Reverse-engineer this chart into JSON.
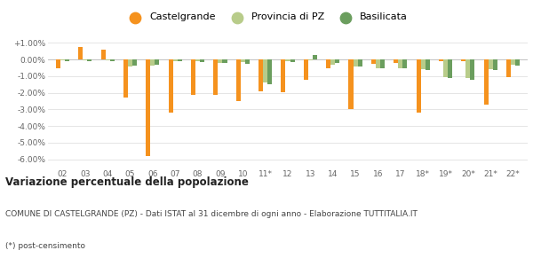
{
  "years": [
    "02",
    "03",
    "04",
    "05",
    "06",
    "07",
    "08",
    "09",
    "10",
    "11*",
    "12",
    "13",
    "14",
    "15",
    "16",
    "17",
    "18*",
    "19*",
    "20*",
    "21*",
    "22*"
  ],
  "castelgrande": [
    -0.55,
    0.75,
    0.6,
    -2.3,
    -5.8,
    -3.2,
    -2.1,
    -2.1,
    -2.5,
    -1.9,
    -1.95,
    -1.2,
    -0.55,
    -3.0,
    -0.25,
    -0.2,
    -3.2,
    -0.1,
    -0.1,
    -2.7,
    -1.05
  ],
  "provincia_pz": [
    -0.05,
    -0.05,
    -0.05,
    -0.4,
    -0.35,
    -0.1,
    -0.1,
    -0.2,
    -0.15,
    -1.4,
    -0.1,
    -0.05,
    -0.3,
    -0.4,
    -0.5,
    -0.55,
    -0.6,
    -1.05,
    -1.1,
    -0.6,
    -0.3
  ],
  "basilicata": [
    -0.1,
    -0.1,
    -0.1,
    -0.35,
    -0.3,
    -0.1,
    -0.15,
    -0.2,
    -0.25,
    -1.5,
    -0.15,
    0.25,
    -0.2,
    -0.4,
    -0.55,
    -0.55,
    -0.65,
    -1.1,
    -1.2,
    -0.65,
    -0.35
  ],
  "color_castelgrande": "#f5921e",
  "color_provincia": "#b8cc8a",
  "color_basilicata": "#6b9e5e",
  "title": "Variazione percentuale della popolazione",
  "label1": "Castelgrande",
  "label2": "Provincia di PZ",
  "label3": "Basilicata",
  "footnote1": "COMUNE DI CASTELGRANDE (PZ) - Dati ISTAT al 31 dicembre di ogni anno - Elaborazione TUTTITALIA.IT",
  "footnote2": "(*) post-censimento",
  "ylim_min": -6.5,
  "ylim_max": 1.5,
  "yticks": [
    1.0,
    0.0,
    -1.0,
    -2.0,
    -3.0,
    -4.0,
    -5.0,
    -6.0
  ],
  "ytick_labels": [
    "+1.00%",
    "0.00%",
    "-1.00%",
    "-2.00%",
    "-3.00%",
    "-4.00%",
    "-5.00%",
    "-6.00%"
  ],
  "background_color": "#ffffff",
  "grid_color": "#e0e0e0"
}
